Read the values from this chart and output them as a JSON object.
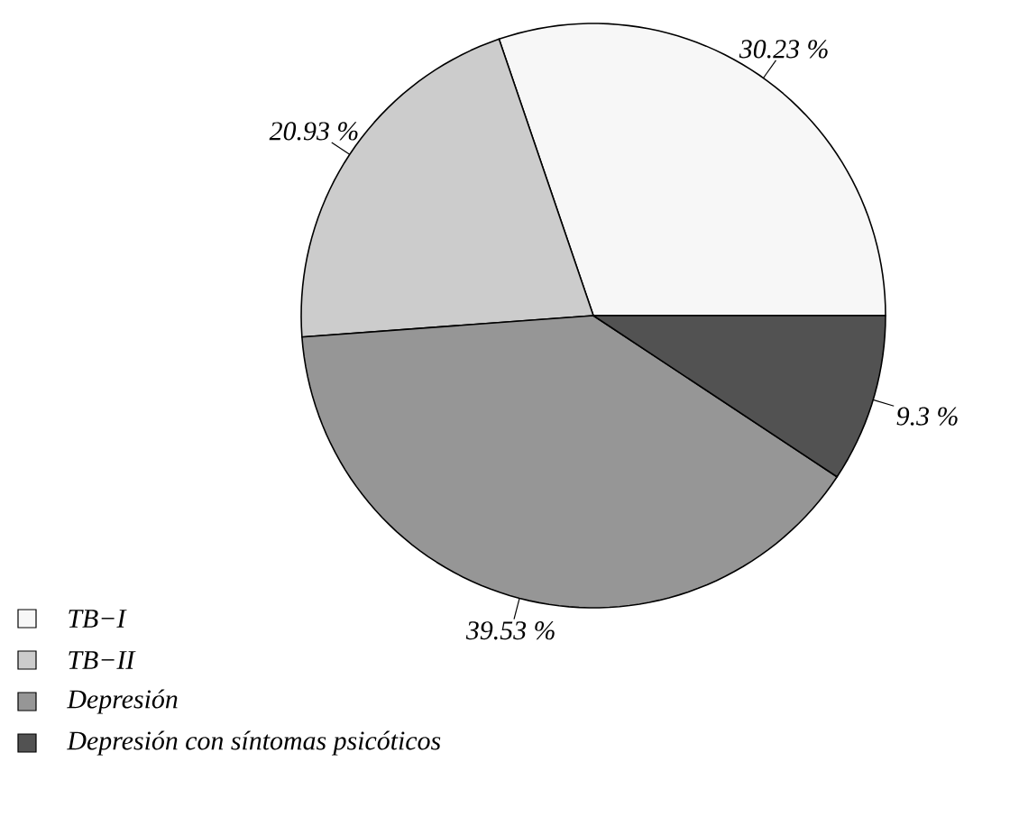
{
  "chart_data": {
    "type": "pie",
    "categories": [
      "TB−I",
      "TB−II",
      "Depresión",
      "Depresión con síntomas psicóticos"
    ],
    "values": [
      30.23,
      20.93,
      39.53,
      9.3
    ],
    "colors": [
      "#f7f7f7",
      "#cccccc",
      "#969696",
      "#525252"
    ],
    "value_labels": [
      "30.23 %",
      "20.93 %",
      "39.53 %",
      "9.3 %"
    ],
    "legend": "bottom left"
  }
}
